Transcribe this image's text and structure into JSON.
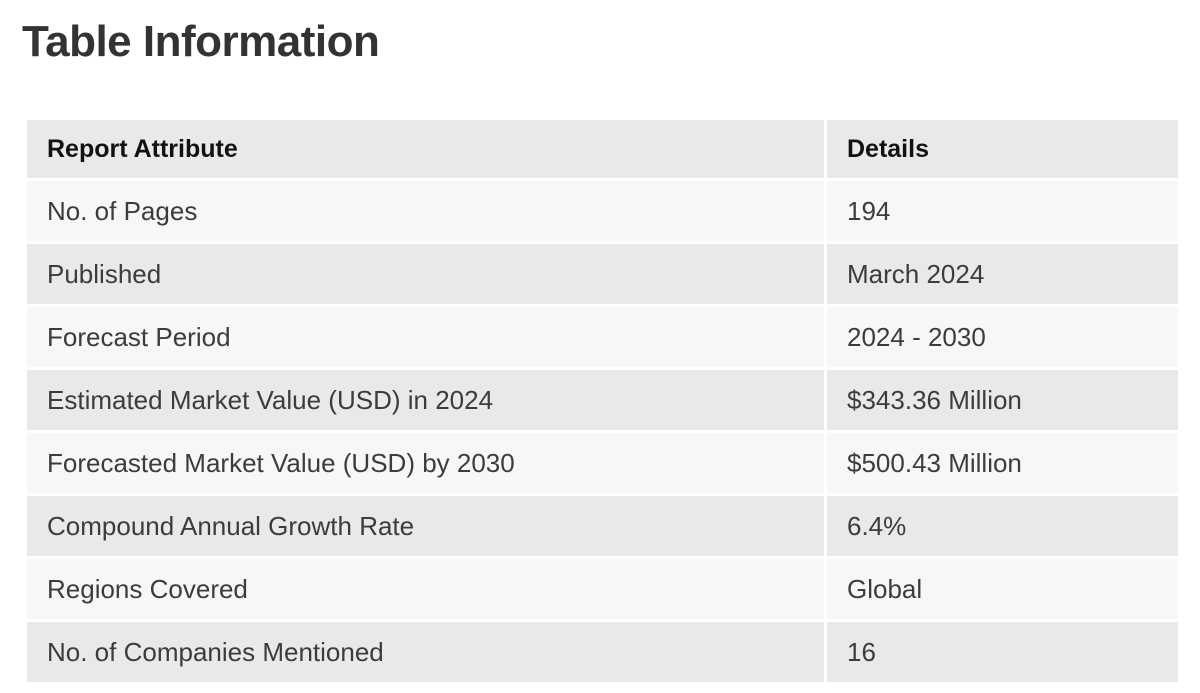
{
  "title": "Table Information",
  "table": {
    "headers": [
      "Report Attribute",
      "Details"
    ],
    "rows": [
      [
        "No. of Pages",
        "194"
      ],
      [
        "Published",
        "March 2024"
      ],
      [
        "Forecast Period",
        "2024 - 2030"
      ],
      [
        "Estimated Market Value (USD) in 2024",
        "$343.36 Million"
      ],
      [
        "Forecasted Market Value (USD) by 2030",
        "$500.43 Million"
      ],
      [
        "Compound Annual Growth Rate",
        "6.4%"
      ],
      [
        "Regions Covered",
        "Global"
      ],
      [
        "No. of Companies Mentioned",
        "16"
      ]
    ]
  },
  "colors": {
    "header_bg": "#e9e9e9",
    "row_light": "#f7f7f7",
    "row_dark": "#e9e9e9",
    "title_text": "#333333"
  }
}
